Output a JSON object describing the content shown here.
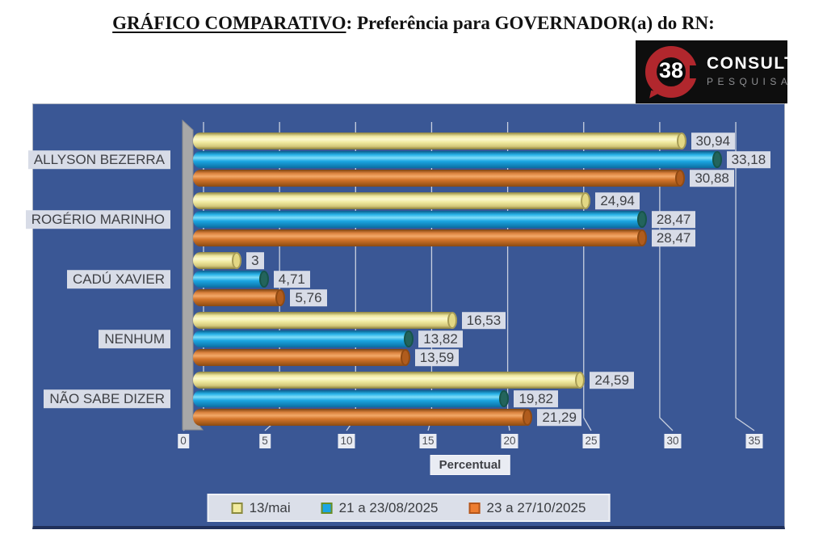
{
  "title": {
    "underlined": "GRÁFICO COMPARATIVO",
    "rest": ": Preferência para GOVERNADOR(a) do RN:"
  },
  "logo": {
    "badge_number": "38",
    "name": "CONSULT",
    "subtitle": "PESQUISA"
  },
  "chart_data": {
    "type": "bar",
    "orientation": "horizontal",
    "title": "GRÁFICO COMPARATIVO: Preferência para GOVERNADOR(a) do RN",
    "categories": [
      "ALLYSON BEZERRA",
      "ROGÉRIO MARINHO",
      "CADÚ XAVIER",
      "NENHUM",
      "NÃO SABE DIZER"
    ],
    "series": [
      {
        "name": "13/mai",
        "color": "#f2ec9e",
        "values": [
          30.94,
          24.94,
          3,
          16.53,
          24.59
        ],
        "labels": [
          "30,94",
          "24,94",
          "3",
          "16,53",
          "24,59"
        ]
      },
      {
        "name": "21 a 23/08/2025",
        "color": "#1ba6e2",
        "values": [
          33.18,
          28.47,
          4.71,
          13.82,
          19.82
        ],
        "labels": [
          "33,18",
          "28,47",
          "4,71",
          "13,82",
          "19,82"
        ]
      },
      {
        "name": "23 a 27/10/2025",
        "color": "#ed7d31",
        "values": [
          30.88,
          28.47,
          5.76,
          13.59,
          21.29
        ],
        "labels": [
          "30,88",
          "28,47",
          "5,76",
          "13,59",
          "21,29"
        ]
      }
    ],
    "xlabel": "Percentual",
    "ticks": [
      0,
      5,
      10,
      15,
      20,
      25,
      30,
      35
    ],
    "xlim": [
      0,
      35
    ],
    "grid": true,
    "legend_position": "bottom",
    "plot_background": "#3a5795",
    "label_box_background": "#d8dce7",
    "grid_color": "#c9d0df"
  }
}
